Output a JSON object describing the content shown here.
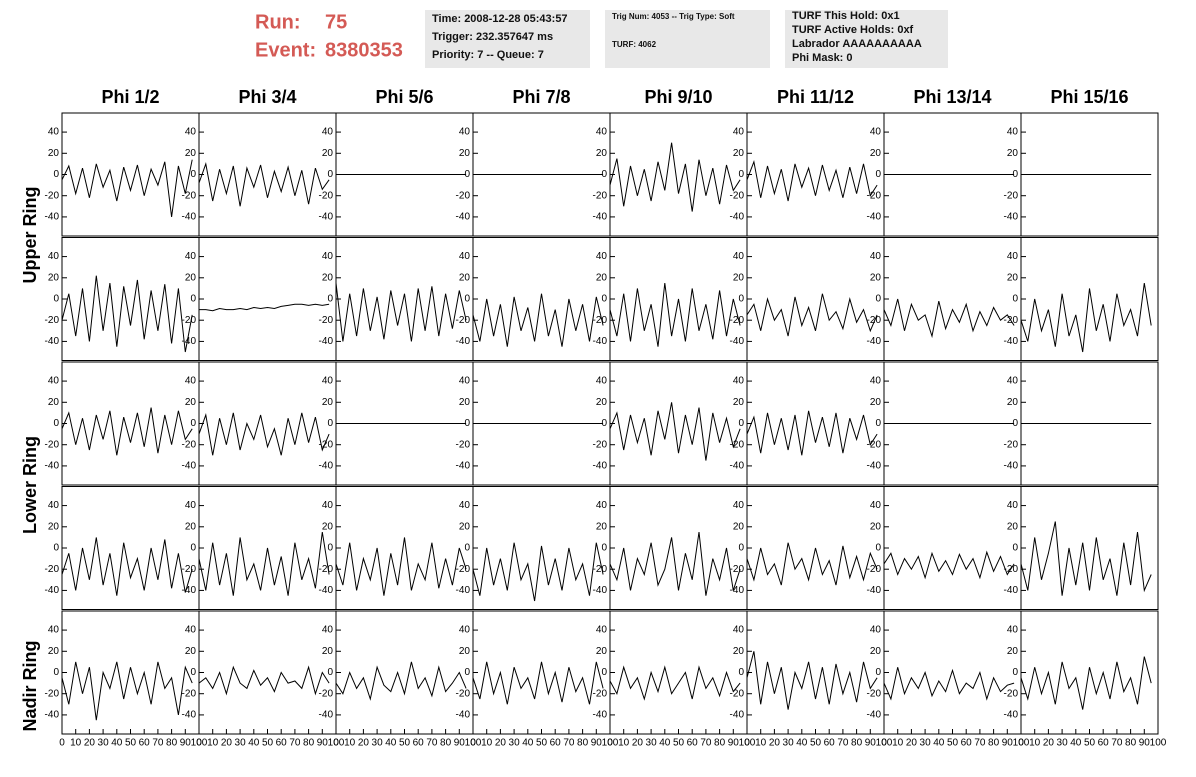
{
  "header": {
    "run_label": "Run:",
    "run": "75",
    "event_label": "Event:",
    "event": "8380353",
    "info": [
      [
        "Time: 2008-12-28 05:43:57",
        "Trigger: 232.357647 ms",
        "Priority: 7 -- Queue: 7"
      ],
      [
        "Trig Num: 4053 -- Trig Type: Soft",
        "TURF: 4062"
      ],
      [
        "TURF This Hold: 0x1",
        "TURF Active Holds: 0xf",
        "Labrador AAAAAAAAAA",
        "Phi Mask: 0"
      ]
    ]
  },
  "chart_data": {
    "type": "line",
    "color": "#000000",
    "columns": [
      "Phi 1/2",
      "Phi 3/4",
      "Phi 5/6",
      "Phi 7/8",
      "Phi 9/10",
      "Phi 11/12",
      "Phi 13/14",
      "Phi 15/16"
    ],
    "rings": [
      "Upper Ring",
      "Lower Ring",
      "Nadir Ring"
    ],
    "xlim": [
      0,
      100
    ],
    "xticks": [
      0,
      10,
      20,
      30,
      40,
      50,
      60,
      70,
      80,
      90,
      100
    ],
    "ylim": [
      -58,
      58
    ],
    "yticks": [
      -40,
      -20,
      0,
      20,
      40
    ],
    "x": [
      0,
      5,
      10,
      15,
      20,
      25,
      30,
      35,
      40,
      45,
      50,
      55,
      60,
      65,
      70,
      75,
      80,
      85,
      90,
      95
    ],
    "series": [
      {
        "values": [
          -5,
          8,
          -18,
          6,
          -22,
          10,
          -12,
          4,
          -25,
          7,
          -15,
          9,
          -20,
          5,
          -10,
          12,
          -40,
          8,
          -18,
          14
        ]
      },
      {
        "values": [
          -8,
          10,
          -25,
          5,
          -18,
          8,
          -30,
          6,
          -12,
          9,
          -22,
          3,
          -16,
          7,
          -20,
          4,
          -28,
          6,
          -14,
          -5
        ]
      },
      {
        "values": [
          0,
          0,
          0,
          0,
          0,
          0,
          0,
          0,
          0,
          0,
          0,
          0,
          0,
          0,
          0,
          0,
          0,
          0,
          0,
          0
        ]
      },
      {
        "values": [
          0,
          0,
          0,
          0,
          0,
          0,
          0,
          0,
          0,
          0,
          0,
          0,
          0,
          0,
          0,
          0,
          0,
          0,
          0,
          0
        ]
      },
      {
        "values": [
          -10,
          15,
          -30,
          8,
          -20,
          5,
          -25,
          12,
          -15,
          30,
          -18,
          10,
          -35,
          14,
          -20,
          6,
          -28,
          9,
          -15,
          -5
        ]
      },
      {
        "values": [
          -5,
          12,
          -22,
          8,
          -18,
          5,
          -25,
          10,
          -12,
          6,
          -20,
          9,
          -15,
          4,
          -22,
          7,
          -18,
          10,
          -20,
          -10
        ]
      },
      {
        "values": [
          0,
          0,
          0,
          0,
          0,
          0,
          0,
          0,
          0,
          0,
          0,
          0,
          0,
          0,
          0,
          0,
          0,
          0,
          0,
          0
        ]
      },
      {
        "values": [
          0,
          0,
          0,
          0,
          0,
          0,
          0,
          0,
          0,
          0,
          0,
          0,
          0,
          0,
          0,
          0,
          0,
          0,
          0,
          0
        ]
      },
      {
        "values": [
          -20,
          5,
          -35,
          10,
          -40,
          22,
          -30,
          15,
          -45,
          12,
          -25,
          18,
          -38,
          8,
          -30,
          14,
          -42,
          10,
          -50,
          -15
        ]
      },
      {
        "values": [
          -10,
          -10,
          -11,
          -9,
          -10,
          -10,
          -9,
          -10,
          -8,
          -9,
          -8,
          -9,
          -7,
          -6,
          -5,
          -5,
          -6,
          -5,
          -6,
          -5
        ]
      },
      {
        "values": [
          15,
          -40,
          5,
          -35,
          10,
          -30,
          2,
          -38,
          8,
          -25,
          5,
          -40,
          10,
          -30,
          12,
          -35,
          5,
          -28,
          8,
          -20
        ]
      },
      {
        "values": [
          -15,
          -40,
          0,
          -35,
          -5,
          -45,
          2,
          -30,
          -8,
          -40,
          5,
          -35,
          -10,
          -45,
          0,
          -30,
          -5,
          -40,
          2,
          -25
        ]
      },
      {
        "values": [
          -10,
          -35,
          5,
          -40,
          10,
          -30,
          -5,
          -45,
          15,
          -35,
          0,
          -40,
          10,
          -30,
          -5,
          -38,
          8,
          -35,
          0,
          -25
        ]
      },
      {
        "values": [
          -15,
          -5,
          -30,
          0,
          -20,
          -10,
          -35,
          2,
          -25,
          -8,
          -30,
          5,
          -20,
          -12,
          -28,
          0,
          -22,
          -10,
          -30,
          -15
        ]
      },
      {
        "values": [
          -10,
          -25,
          0,
          -30,
          -5,
          -20,
          -15,
          -35,
          -2,
          -28,
          -10,
          -22,
          -5,
          -30,
          -12,
          -25,
          -8,
          -20,
          -15,
          -25
        ]
      },
      {
        "values": [
          -20,
          -40,
          0,
          -30,
          -10,
          -45,
          5,
          -35,
          -15,
          -50,
          10,
          -30,
          -5,
          -40,
          5,
          -25,
          -10,
          -35,
          15,
          -25
        ]
      },
      {
        "values": [
          -5,
          10,
          -20,
          5,
          -25,
          8,
          -15,
          12,
          -30,
          6,
          -18,
          10,
          -22,
          15,
          -28,
          8,
          -20,
          12,
          -15,
          -5
        ]
      },
      {
        "values": [
          -10,
          8,
          -30,
          5,
          -20,
          10,
          -25,
          0,
          -15,
          8,
          -22,
          -5,
          -30,
          5,
          -20,
          10,
          -18,
          6,
          -25,
          -10
        ]
      },
      {
        "values": [
          0,
          0,
          0,
          0,
          0,
          0,
          0,
          0,
          0,
          0,
          0,
          0,
          0,
          0,
          0,
          0,
          0,
          0,
          0,
          0
        ]
      },
      {
        "values": [
          0,
          0,
          0,
          0,
          0,
          0,
          0,
          0,
          0,
          0,
          0,
          0,
          0,
          0,
          0,
          0,
          0,
          0,
          0,
          0
        ]
      },
      {
        "values": [
          -5,
          10,
          -25,
          8,
          -18,
          5,
          -30,
          12,
          -15,
          20,
          -28,
          8,
          -20,
          15,
          -35,
          10,
          -18,
          5,
          -22,
          -5
        ]
      },
      {
        "values": [
          -10,
          6,
          -28,
          10,
          -20,
          5,
          -25,
          8,
          -30,
          12,
          -18,
          6,
          -22,
          10,
          -28,
          5,
          -15,
          8,
          -20,
          -10
        ]
      },
      {
        "values": [
          0,
          0,
          0,
          0,
          0,
          0,
          0,
          0,
          0,
          0,
          0,
          0,
          0,
          0,
          0,
          0,
          0,
          0,
          0,
          0
        ]
      },
      {
        "values": [
          0,
          0,
          0,
          0,
          0,
          0,
          0,
          0,
          0,
          0,
          0,
          0,
          0,
          0,
          0,
          0,
          0,
          0,
          0,
          0
        ]
      },
      {
        "values": [
          -25,
          -5,
          -40,
          0,
          -30,
          10,
          -35,
          -5,
          -45,
          5,
          -28,
          -10,
          -40,
          0,
          -30,
          8,
          -38,
          -5,
          -42,
          -20
        ]
      },
      {
        "values": [
          -10,
          -40,
          5,
          -35,
          -5,
          -45,
          10,
          -30,
          -15,
          -40,
          0,
          -35,
          -8,
          -45,
          5,
          -30,
          -10,
          -38,
          15,
          -25
        ]
      },
      {
        "values": [
          -15,
          -35,
          5,
          -40,
          -10,
          -30,
          0,
          -45,
          -5,
          -35,
          10,
          -40,
          -15,
          -30,
          5,
          -38,
          -10,
          -35,
          0,
          -20
        ]
      },
      {
        "values": [
          -20,
          -45,
          0,
          -35,
          -10,
          -40,
          5,
          -30,
          -15,
          -50,
          2,
          -35,
          -10,
          -40,
          0,
          -30,
          -15,
          -45,
          5,
          -25
        ]
      },
      {
        "values": [
          -15,
          -30,
          0,
          -40,
          -10,
          -25,
          5,
          -35,
          -20,
          10,
          -40,
          -5,
          -30,
          15,
          -45,
          -10,
          -30,
          0,
          -40,
          -20
        ]
      },
      {
        "values": [
          -10,
          -30,
          0,
          -25,
          -15,
          -35,
          5,
          -20,
          -10,
          -30,
          0,
          -25,
          -12,
          -35,
          2,
          -28,
          -8,
          -30,
          -5,
          -20
        ]
      },
      {
        "values": [
          -15,
          -5,
          -25,
          -10,
          -20,
          -8,
          -28,
          -5,
          -22,
          -12,
          -25,
          -6,
          -20,
          -10,
          -28,
          -4,
          -22,
          -8,
          -25,
          -15
        ]
      },
      {
        "values": [
          -15,
          -40,
          10,
          -30,
          -5,
          25,
          -45,
          0,
          -35,
          5,
          -40,
          10,
          -30,
          -10,
          -45,
          5,
          -35,
          15,
          -40,
          -25
        ]
      },
      {
        "values": [
          -5,
          -30,
          10,
          -20,
          5,
          -45,
          0,
          -15,
          10,
          -25,
          5,
          -20,
          0,
          -30,
          10,
          -15,
          -5,
          -40,
          5,
          -10
        ]
      },
      {
        "values": [
          -10,
          -5,
          -15,
          0,
          -20,
          5,
          -10,
          -15,
          2,
          -12,
          -5,
          -18,
          0,
          -10,
          -8,
          -15,
          5,
          -20,
          0,
          -10
        ]
      },
      {
        "values": [
          -10,
          -20,
          0,
          -15,
          -5,
          -25,
          5,
          -12,
          -18,
          0,
          -20,
          10,
          -15,
          -5,
          -22,
          5,
          -18,
          -10,
          0,
          -15
        ]
      },
      {
        "values": [
          -5,
          -25,
          10,
          -20,
          0,
          -30,
          5,
          -15,
          -5,
          -25,
          10,
          -20,
          0,
          -28,
          5,
          -18,
          -5,
          -30,
          10,
          -15
        ]
      },
      {
        "values": [
          -8,
          -20,
          5,
          -15,
          -5,
          -25,
          0,
          -18,
          5,
          -20,
          -10,
          0,
          -25,
          5,
          -15,
          -5,
          -22,
          0,
          -18,
          -10
        ]
      },
      {
        "values": [
          -5,
          20,
          -30,
          10,
          -20,
          5,
          -35,
          0,
          -15,
          10,
          -25,
          5,
          -30,
          8,
          -20,
          0,
          -28,
          10,
          -15,
          -5
        ]
      },
      {
        "values": [
          -10,
          -25,
          5,
          -20,
          -5,
          -15,
          0,
          -22,
          -8,
          -18,
          2,
          -20,
          -10,
          -15,
          0,
          -25,
          -5,
          -18,
          -12,
          -10
        ]
      },
      {
        "values": [
          -5,
          -25,
          5,
          -20,
          0,
          -30,
          10,
          -15,
          -5,
          -35,
          5,
          -20,
          0,
          -25,
          10,
          -18,
          -5,
          -30,
          15,
          -10
        ]
      }
    ]
  }
}
